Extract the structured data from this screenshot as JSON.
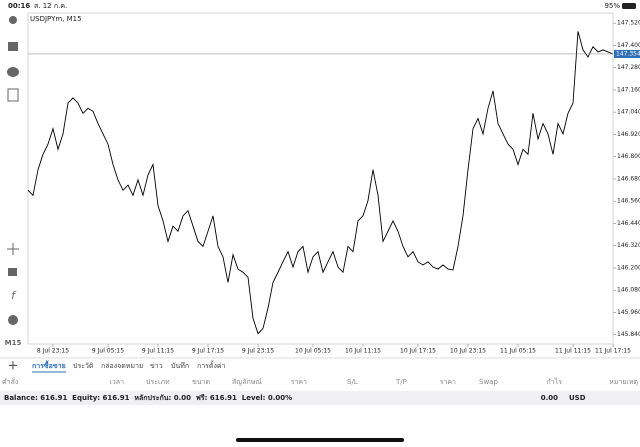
{
  "status_bar": {
    "time": "00:16",
    "date": "ส. 12 ก.ค.",
    "battery": "95%"
  },
  "toolbar": {
    "timeframe": "M15"
  },
  "chart_data": {
    "type": "line",
    "title": "USDJPYm, M15",
    "color": "#000000",
    "categories": [
      null,
      null,
      null,
      null,
      null,
      "8 Jul 23:15",
      null,
      null,
      null,
      null,
      null,
      null,
      null,
      null,
      null,
      null,
      "9 Jul 05:15",
      null,
      null,
      null,
      null,
      null,
      null,
      null,
      null,
      null,
      "9 Jul 11:15",
      null,
      null,
      null,
      null,
      null,
      null,
      null,
      null,
      null,
      "9 Jul 17:15",
      null,
      null,
      null,
      null,
      null,
      null,
      null,
      null,
      null,
      "9 Jul 23:15",
      null,
      null,
      null,
      null,
      null,
      null,
      null,
      null,
      null,
      null,
      "10 Jul 05:15",
      null,
      null,
      null,
      null,
      null,
      null,
      null,
      null,
      null,
      "10 Jul 11:15",
      null,
      null,
      null,
      null,
      null,
      null,
      null,
      null,
      null,
      null,
      "10 Jul 17:15",
      null,
      null,
      null,
      null,
      null,
      null,
      null,
      null,
      null,
      "10 Jul 23:15",
      null,
      null,
      null,
      null,
      null,
      null,
      null,
      null,
      null,
      "11 Jul 05:15",
      null,
      null,
      null,
      null,
      null,
      null,
      null,
      null,
      null,
      null,
      "11 Jul 11:15",
      null,
      null,
      null,
      null,
      null,
      null,
      null,
      "11 Jul 17:15"
    ],
    "values": [
      146.619,
      146.592,
      146.73,
      146.813,
      146.868,
      146.951,
      146.84,
      146.923,
      147.089,
      147.117,
      147.089,
      147.034,
      147.061,
      147.045,
      146.979,
      146.923,
      146.868,
      146.758,
      146.675,
      146.619,
      146.647,
      146.592,
      146.675,
      146.592,
      146.702,
      146.758,
      146.537,
      146.454,
      146.343,
      146.426,
      146.398,
      146.481,
      146.509,
      146.426,
      146.343,
      146.316,
      146.398,
      146.481,
      146.316,
      146.26,
      146.122,
      146.271,
      146.194,
      146.177,
      146.15,
      145.929,
      145.846,
      145.874,
      145.984,
      146.122,
      146.177,
      146.233,
      146.288,
      146.205,
      146.288,
      146.316,
      146.177,
      146.26,
      146.288,
      146.177,
      146.233,
      146.288,
      146.205,
      146.177,
      146.316,
      146.288,
      146.454,
      146.481,
      146.564,
      146.73,
      146.592,
      146.343,
      146.398,
      146.454,
      146.398,
      146.316,
      146.26,
      146.288,
      146.233,
      146.216,
      146.233,
      146.205,
      146.194,
      146.216,
      146.194,
      146.189,
      146.316,
      146.481,
      146.73,
      146.951,
      147.006,
      146.923,
      147.061,
      147.155,
      146.979,
      146.923,
      146.868,
      146.84,
      146.758,
      146.84,
      146.813,
      147.034,
      146.896,
      146.979,
      146.923,
      146.813,
      146.979,
      146.923,
      147.034,
      147.089,
      147.476,
      147.376,
      147.338,
      147.393,
      147.365,
      147.376,
      147.365,
      147.354
    ],
    "ylim": [
      145.79,
      147.575
    ],
    "yticks": [
      {
        "value": 147.52,
        "label": "147.520"
      },
      {
        "value": 147.4,
        "label": "147.400"
      },
      {
        "value": 147.28,
        "label": "147.280"
      },
      {
        "value": 147.16,
        "label": "147.160"
      },
      {
        "value": 147.04,
        "label": "147.040"
      },
      {
        "value": 146.92,
        "label": "146.920"
      },
      {
        "value": 146.8,
        "label": "146.800"
      },
      {
        "value": 146.68,
        "label": "146.680"
      },
      {
        "value": 146.56,
        "label": "146.560"
      },
      {
        "value": 146.44,
        "label": "146.440"
      },
      {
        "value": 146.32,
        "label": "146.320"
      },
      {
        "value": 146.2,
        "label": "146.200"
      },
      {
        "value": 146.08,
        "label": "146.080"
      },
      {
        "value": 145.96,
        "label": "145.960"
      },
      {
        "value": 145.84,
        "label": "145.840"
      }
    ],
    "current_price": 147.354,
    "current_price_color": "#2f6fb7",
    "grid": false
  },
  "tabs": [
    "การซื้อขาย",
    "ประวัติ",
    "กล่องจดหมาย",
    "ข่าว",
    "บันทึก",
    "การตั้งค่า"
  ],
  "table": {
    "columns": [
      "คำสั่ง",
      "เวลา",
      "ประเภท",
      "ขนาด",
      "สัญลักษณ์",
      "ราคา",
      "S/L",
      "T/P",
      "ราคา",
      "Swap",
      "กำไร",
      "หมายเหตุ"
    ]
  },
  "account": {
    "summary": "Balance: 616.91  Equity: 616.91  หลักประกัน: 0.00  ฟรี: 616.91  Level: 0.00%",
    "profit": "0.00",
    "currency": "USD"
  }
}
